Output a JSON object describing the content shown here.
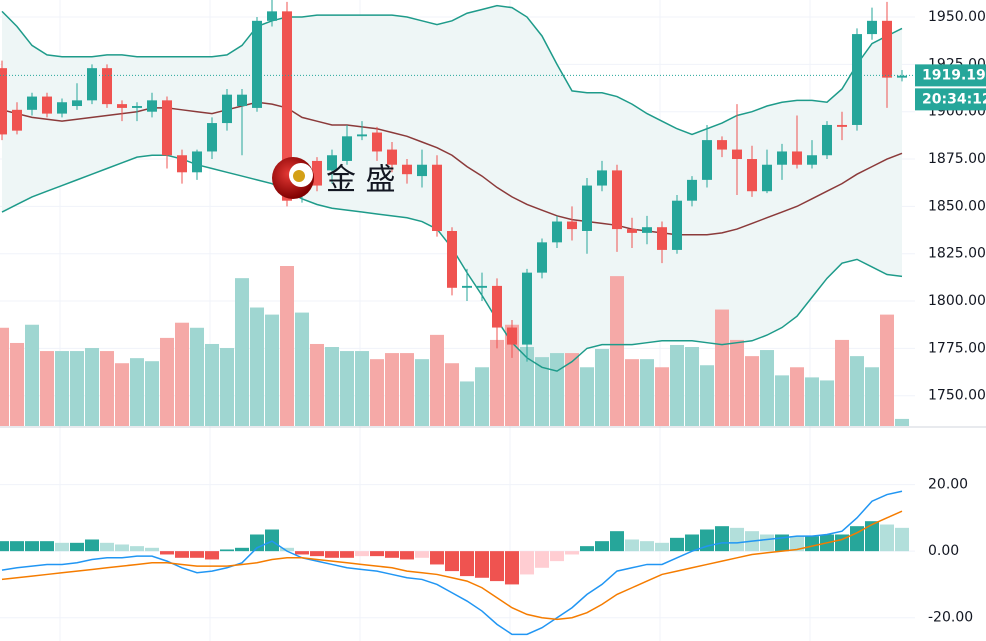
{
  "chart_data": [
    {
      "type": "candlestick",
      "ylim": [
        1734,
        1959
      ],
      "yticks": [
        {
          "value": 1750,
          "label": "1750.00"
        },
        {
          "value": 1775,
          "label": "1775.00"
        },
        {
          "value": 1800,
          "label": "1800.00"
        },
        {
          "value": 1825,
          "label": "1825.00"
        },
        {
          "value": 1850,
          "label": "1850.00"
        },
        {
          "value": 1875,
          "label": "1875.00"
        },
        {
          "value": 1900,
          "label": "1900.00"
        },
        {
          "value": 1925,
          "label": "1925.00"
        },
        {
          "value": 1950,
          "label": "1950.00"
        }
      ],
      "grid": true,
      "up_color": "#26a69a",
      "down_color": "#ef5350",
      "open": [
        1923,
        1901,
        1901,
        1908,
        1899,
        1903,
        1906,
        1923,
        1904,
        1902,
        1900,
        1906,
        1877,
        1868,
        1879,
        1894,
        1903,
        1902,
        1948,
        1953,
        1861,
        1874,
        1869,
        1874,
        1887,
        1889,
        1880,
        1872,
        1866,
        1872,
        1837,
        1807,
        1807,
        1808,
        1786,
        1777,
        1815,
        1831,
        1842,
        1837,
        1861,
        1869,
        1838,
        1836,
        1839,
        1827,
        1853,
        1864,
        1885,
        1880,
        1875,
        1858,
        1872,
        1879,
        1872,
        1877,
        1893,
        1893,
        1941,
        1948,
        1918
      ],
      "high": [
        1927,
        1905,
        1910,
        1910,
        1907,
        1915,
        1925,
        1925,
        1906,
        1905,
        1910,
        1908,
        1880,
        1880,
        1897,
        1912,
        1912,
        1950,
        1960,
        1958,
        1872,
        1876,
        1880,
        1893,
        1895,
        1892,
        1884,
        1875,
        1880,
        1877,
        1839,
        1817,
        1815,
        1812,
        1790,
        1817,
        1833,
        1845,
        1850,
        1865,
        1874,
        1872,
        1844,
        1845,
        1842,
        1856,
        1866,
        1893,
        1887,
        1904,
        1882,
        1880,
        1883,
        1898,
        1885,
        1895,
        1900,
        1944,
        1955,
        1958,
        1922
      ],
      "low": [
        1885,
        1888,
        1898,
        1897,
        1897,
        1901,
        1904,
        1902,
        1895,
        1895,
        1897,
        1870,
        1862,
        1864,
        1875,
        1890,
        1877,
        1900,
        1945,
        1850,
        1852,
        1858,
        1862,
        1872,
        1885,
        1874,
        1868,
        1862,
        1860,
        1834,
        1803,
        1800,
        1800,
        1775,
        1770,
        1768,
        1812,
        1828,
        1832,
        1825,
        1858,
        1826,
        1828,
        1830,
        1820,
        1825,
        1850,
        1860,
        1876,
        1856,
        1855,
        1857,
        1864,
        1870,
        1870,
        1875,
        1885,
        1890,
        1938,
        1902,
        1916
      ],
      "close": [
        1888,
        1890,
        1908,
        1899,
        1905,
        1906,
        1923,
        1904,
        1902,
        1903,
        1906,
        1877,
        1868,
        1879,
        1894,
        1909,
        1909,
        1948,
        1953,
        1853,
        1869,
        1861,
        1877,
        1887,
        1888,
        1879,
        1872,
        1867,
        1872,
        1837,
        1807,
        1808,
        1808,
        1786,
        1777,
        1815,
        1831,
        1842,
        1838,
        1861,
        1869,
        1838,
        1836,
        1839,
        1827,
        1853,
        1864,
        1885,
        1880,
        1875,
        1858,
        1872,
        1879,
        1872,
        1877,
        1893,
        1892,
        1941,
        1948,
        1918,
        1919
      ],
      "bands": {
        "line_color": "#1e9b8a",
        "middle_color": "#8b3a3a",
        "fill": "#eef6f6",
        "upper": [
          1953,
          1945,
          1935,
          1930,
          1929,
          1929,
          1929,
          1930,
          1930,
          1929,
          1929,
          1929,
          1929,
          1929,
          1929,
          1930,
          1935,
          1945,
          1948,
          1950,
          1950,
          1951,
          1951,
          1951,
          1951,
          1951,
          1951,
          1950,
          1948,
          1946,
          1948,
          1952,
          1954,
          1956,
          1955,
          1950,
          1940,
          1925,
          1911,
          1910,
          1910,
          1908,
          1904,
          1899,
          1895,
          1891,
          1888,
          1891,
          1894,
          1898,
          1900,
          1903,
          1905,
          1906,
          1906,
          1905,
          1912,
          1925,
          1936,
          1940,
          1944
        ],
        "middle": [
          1901,
          1899,
          1897,
          1896,
          1895,
          1896,
          1897,
          1898,
          1899,
          1900,
          1902,
          1902,
          1901,
          1900,
          1899,
          1901,
          1903,
          1905,
          1904,
          1902,
          1897,
          1895,
          1893,
          1893,
          1892,
          1891,
          1889,
          1887,
          1884,
          1881,
          1877,
          1871,
          1866,
          1860,
          1855,
          1851,
          1848,
          1845,
          1843,
          1842,
          1841,
          1840,
          1838,
          1837,
          1836,
          1835,
          1835,
          1835,
          1836,
          1838,
          1841,
          1844,
          1847,
          1850,
          1854,
          1858,
          1862,
          1867,
          1871,
          1875,
          1878
        ],
        "lower": [
          1847,
          1851,
          1855,
          1858,
          1861,
          1864,
          1867,
          1870,
          1873,
          1876,
          1877,
          1877,
          1875,
          1872,
          1870,
          1868,
          1866,
          1864,
          1862,
          1858,
          1854,
          1851,
          1849,
          1848,
          1847,
          1846,
          1845,
          1844,
          1842,
          1838,
          1828,
          1815,
          1803,
          1790,
          1778,
          1770,
          1765,
          1763,
          1768,
          1775,
          1777,
          1777,
          1777,
          1778,
          1779,
          1779,
          1779,
          1778,
          1777,
          1778,
          1779,
          1782,
          1786,
          1792,
          1802,
          1812,
          1820,
          1822,
          1818,
          1814,
          1813
        ]
      },
      "volume": {
        "up_color": "#9fd6d1",
        "down_color": "#f5a9a7",
        "values": [
          97,
          82,
          100,
          74,
          74,
          74,
          77,
          74,
          62,
          67,
          64,
          87,
          102,
          97,
          81,
          77,
          146,
          117,
          110,
          158,
          112,
          81,
          78,
          74,
          74,
          66,
          72,
          72,
          66,
          90,
          62,
          44,
          58,
          85,
          100,
          78,
          68,
          72,
          72,
          58,
          76,
          148,
          66,
          66,
          58,
          80,
          78,
          60,
          115,
          85,
          69,
          75,
          50,
          58,
          48,
          45,
          85,
          69,
          58,
          110,
          7
        ]
      },
      "last_price": 1919.19,
      "price_tag_color": "#26a69a",
      "countdown": "20:34:12",
      "watermark": "金 盛"
    },
    {
      "type": "macd",
      "ylim": [
        -27,
        37
      ],
      "yticks": [
        {
          "value": 20,
          "label": "20.00"
        },
        {
          "value": 0,
          "label": "0.00"
        },
        {
          "value": -20,
          "label": "-20.00"
        }
      ],
      "grid": true,
      "histogram": [
        3,
        3,
        3,
        3,
        2.5,
        2.5,
        3.5,
        2.5,
        2,
        1.5,
        1,
        -1,
        -2,
        -2,
        -2.5,
        0.5,
        1,
        5,
        6.5,
        1,
        -1,
        -1.5,
        -2,
        -2,
        -1.5,
        -1.5,
        -2,
        -2.5,
        -2,
        -4,
        -6,
        -7.5,
        -8,
        -9,
        -10,
        -7,
        -5,
        -3,
        -1,
        1.5,
        3,
        6,
        3.5,
        3,
        2.5,
        4,
        5,
        6.5,
        7.5,
        7,
        6,
        5,
        5,
        4.5,
        4.5,
        5,
        5,
        7.5,
        9,
        8,
        7
      ],
      "histogram_colors": {
        "up_strong": "#26a69a",
        "up_weak": "#b2dfdb",
        "down_strong": "#ef5350",
        "down_weak": "#ffcdd2"
      },
      "macd": {
        "color": "#2196f3",
        "values": [
          -5.7,
          -5,
          -4.5,
          -4,
          -4,
          -3.5,
          -2.5,
          -2,
          -2,
          -1.5,
          -1.5,
          -3,
          -5,
          -6.5,
          -6,
          -5,
          -3.5,
          1,
          3,
          0,
          -2,
          -3,
          -4,
          -5,
          -5.5,
          -6,
          -7,
          -8,
          -8.5,
          -10,
          -12.5,
          -15,
          -18,
          -22,
          -25,
          -25,
          -23,
          -20,
          -17,
          -13,
          -10,
          -6,
          -5,
          -4,
          -4,
          -2,
          0,
          1.5,
          2.5,
          2.5,
          3,
          3.5,
          4,
          4.5,
          4.5,
          5,
          6,
          10,
          15,
          17,
          18
        ]
      },
      "signal": {
        "color": "#f57c00",
        "values": [
          -8.5,
          -8,
          -7.5,
          -7,
          -6.5,
          -6,
          -5.5,
          -5,
          -4.5,
          -4,
          -3.5,
          -3.5,
          -4,
          -4.5,
          -4.5,
          -4.5,
          -4,
          -3.5,
          -2.5,
          -2,
          -2,
          -2.5,
          -3,
          -3.5,
          -4,
          -4.5,
          -5,
          -6,
          -6.5,
          -7,
          -8,
          -9,
          -11,
          -14,
          -17,
          -19,
          -20,
          -20.5,
          -20,
          -18.5,
          -16,
          -13,
          -11,
          -9,
          -7,
          -6,
          -5,
          -4,
          -3,
          -2,
          -1,
          -0.5,
          0,
          0.5,
          1.5,
          2.5,
          3.5,
          5.5,
          8,
          10,
          12
        ]
      }
    }
  ]
}
